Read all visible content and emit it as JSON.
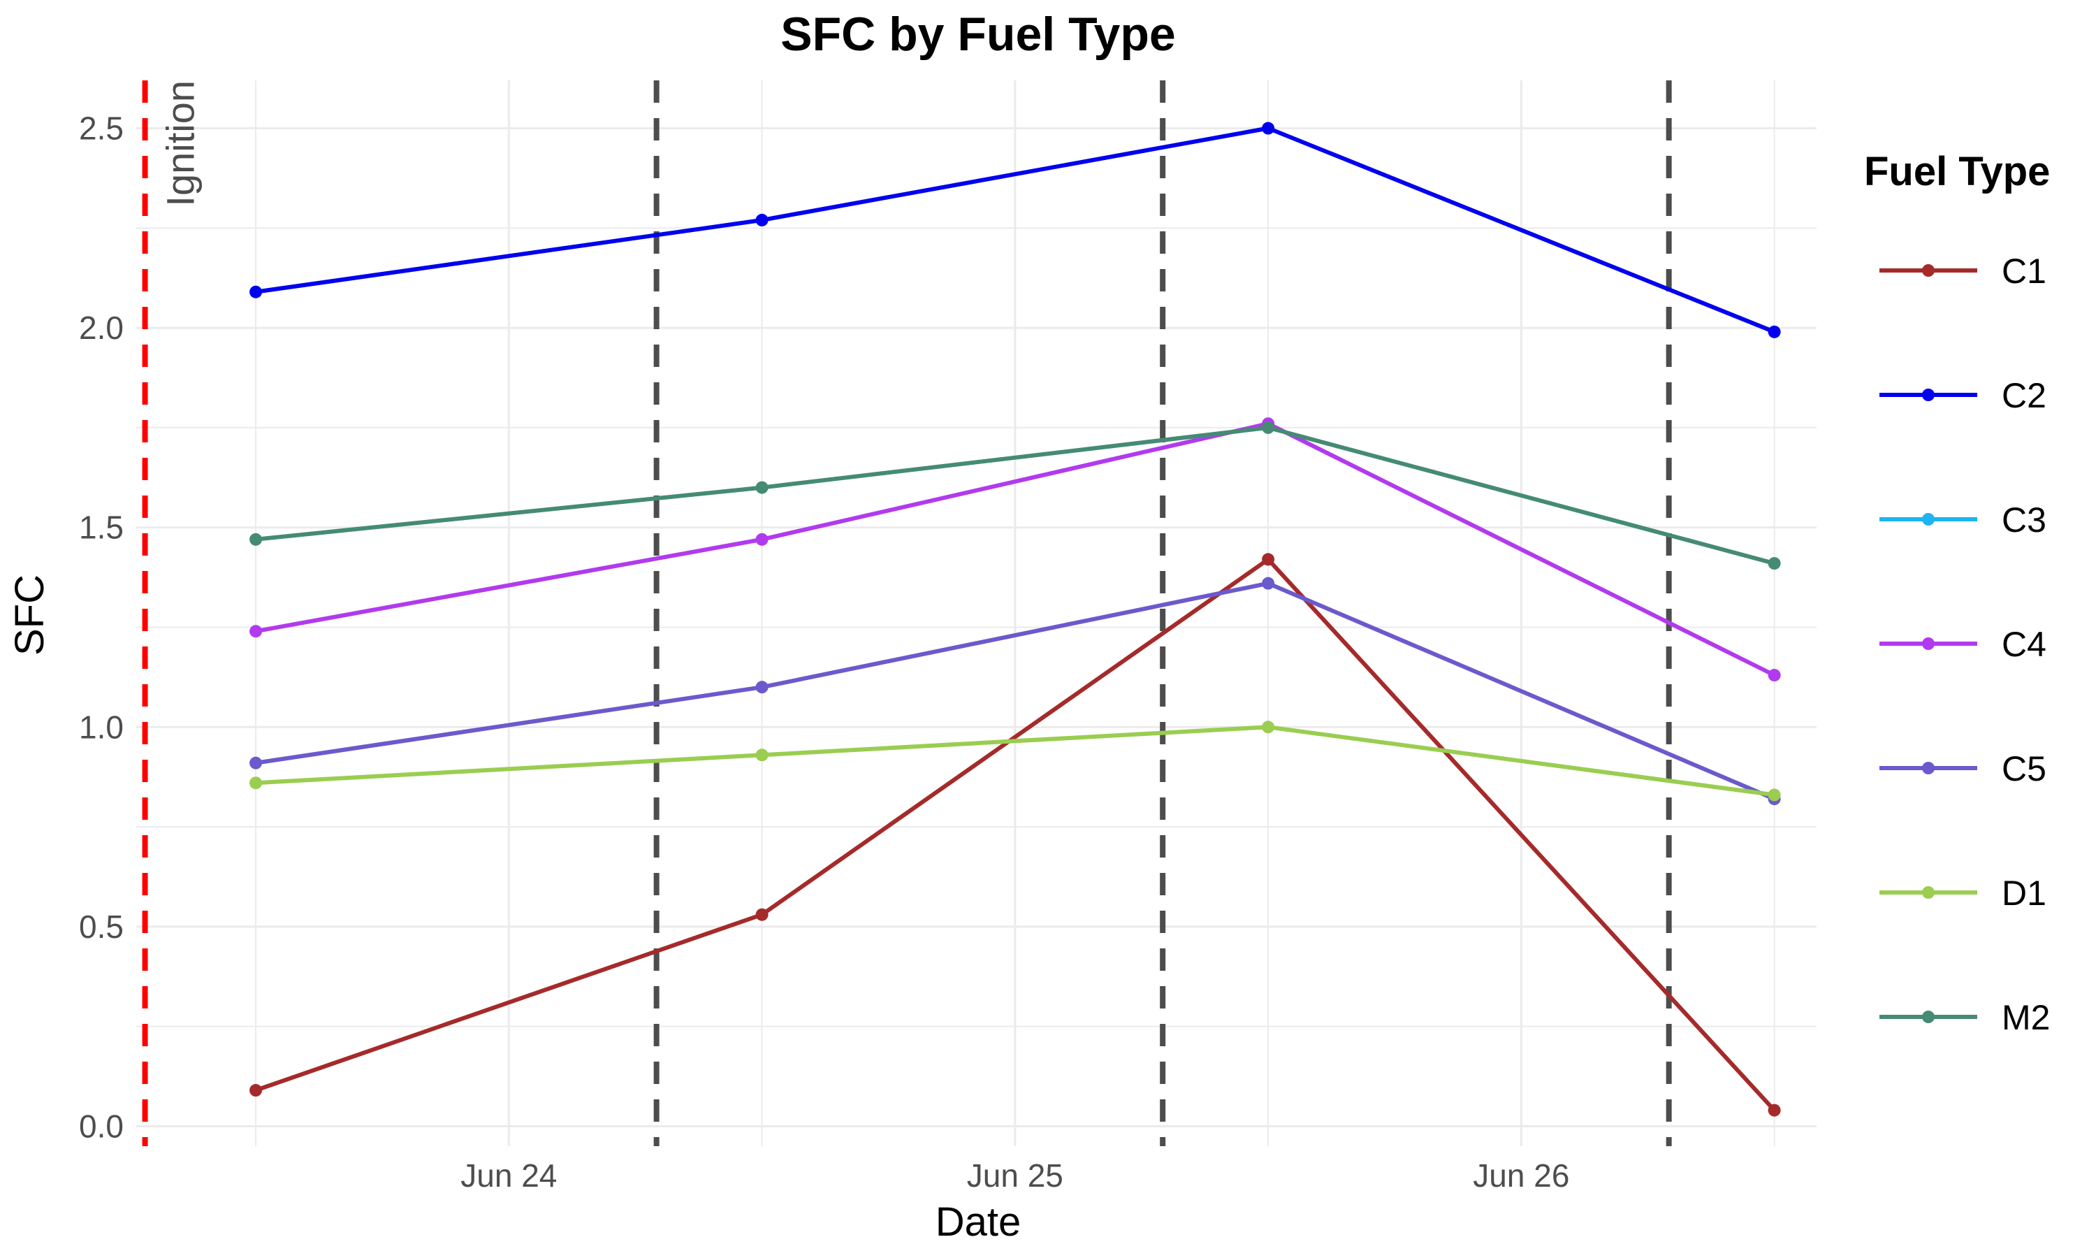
{
  "chart_data": {
    "type": "line",
    "title": "SFC by Fuel Type",
    "xlabel": "Date",
    "ylabel": "SFC",
    "x_axis": {
      "type": "date",
      "min": "2023-06-23T06:20",
      "max": "2023-06-26T14:00",
      "ticks": [
        {
          "date": "2023-06-24T00:00",
          "label": "Jun 24"
        },
        {
          "date": "2023-06-25T00:00",
          "label": "Jun 25"
        },
        {
          "date": "2023-06-26T00:00",
          "label": "Jun 26"
        }
      ]
    },
    "ylim": [
      -0.05,
      2.62
    ],
    "y_ticks": [
      0.0,
      0.5,
      1.0,
      1.5,
      2.0,
      2.5
    ],
    "y_tick_labels": [
      "0.0",
      "0.5",
      "1.0",
      "1.5",
      "2.0",
      "2.5"
    ],
    "grid": true,
    "x": [
      "2023-06-23T12:00",
      "2023-06-24T12:00",
      "2023-06-25T12:00",
      "2023-06-26T12:00"
    ],
    "legend": {
      "title": "Fuel Type",
      "placement": "right"
    },
    "series": [
      {
        "name": "C1",
        "color": "#A52A2A",
        "values": [
          0.09,
          0.53,
          1.42,
          0.04
        ]
      },
      {
        "name": "C2",
        "color": "#0000EE",
        "values": [
          2.09,
          2.27,
          2.5,
          1.99
        ]
      },
      {
        "name": "C3",
        "color": "#1EB4F0",
        "values": [
          null,
          null,
          null,
          null
        ]
      },
      {
        "name": "C4",
        "color": "#B23AEE",
        "values": [
          1.24,
          1.47,
          1.76,
          1.13
        ]
      },
      {
        "name": "C5",
        "color": "#6A5ACD",
        "values": [
          0.91,
          1.1,
          1.36,
          0.82
        ]
      },
      {
        "name": "D1",
        "color": "#9ACD50",
        "values": [
          0.86,
          0.93,
          1.0,
          0.83
        ]
      },
      {
        "name": "M2",
        "color": "#458B74",
        "values": [
          1.47,
          1.6,
          1.75,
          1.41
        ]
      }
    ],
    "reference_lines": [
      {
        "date": "2023-06-23T06:45",
        "color": "#FF0000",
        "style": "dashed",
        "label": "Ignition"
      },
      {
        "date": "2023-06-24T07:00",
        "color": "#4d4d4d",
        "style": "dashed"
      },
      {
        "date": "2023-06-25T07:00",
        "color": "#4d4d4d",
        "style": "dashed"
      },
      {
        "date": "2023-06-26T07:00",
        "color": "#4d4d4d",
        "style": "dashed"
      }
    ]
  }
}
